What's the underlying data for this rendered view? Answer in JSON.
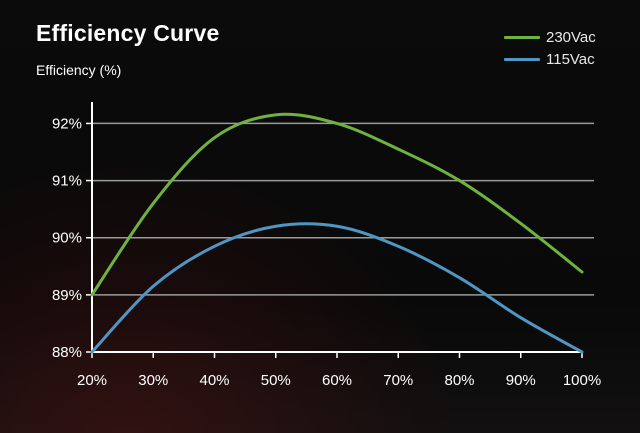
{
  "chart_data": {
    "type": "line",
    "title": "Efficiency Curve",
    "ylabel": "Efficiency (%)",
    "xlabel": "",
    "x": [
      20,
      30,
      40,
      50,
      60,
      70,
      80,
      90,
      100
    ],
    "x_tick_labels": [
      "20%",
      "30%",
      "40%",
      "50%",
      "60%",
      "70%",
      "80%",
      "90%",
      "100%"
    ],
    "y_ticks": [
      88,
      89,
      90,
      91,
      92
    ],
    "y_tick_labels": [
      "88%",
      "89%",
      "90%",
      "91%",
      "92%"
    ],
    "xlim": [
      20,
      100
    ],
    "ylim": [
      88,
      92.2
    ],
    "grid": "horizontal",
    "legend_position": "top-right",
    "series": [
      {
        "name": "230Vac",
        "color": "#6fb33f",
        "values": [
          89.0,
          90.6,
          91.75,
          92.15,
          92.0,
          91.55,
          91.0,
          90.25,
          89.4
        ]
      },
      {
        "name": "115Vac",
        "color": "#4f96c4",
        "values": [
          88.0,
          89.15,
          89.85,
          90.2,
          90.2,
          89.85,
          89.3,
          88.6,
          88.0
        ]
      }
    ]
  }
}
